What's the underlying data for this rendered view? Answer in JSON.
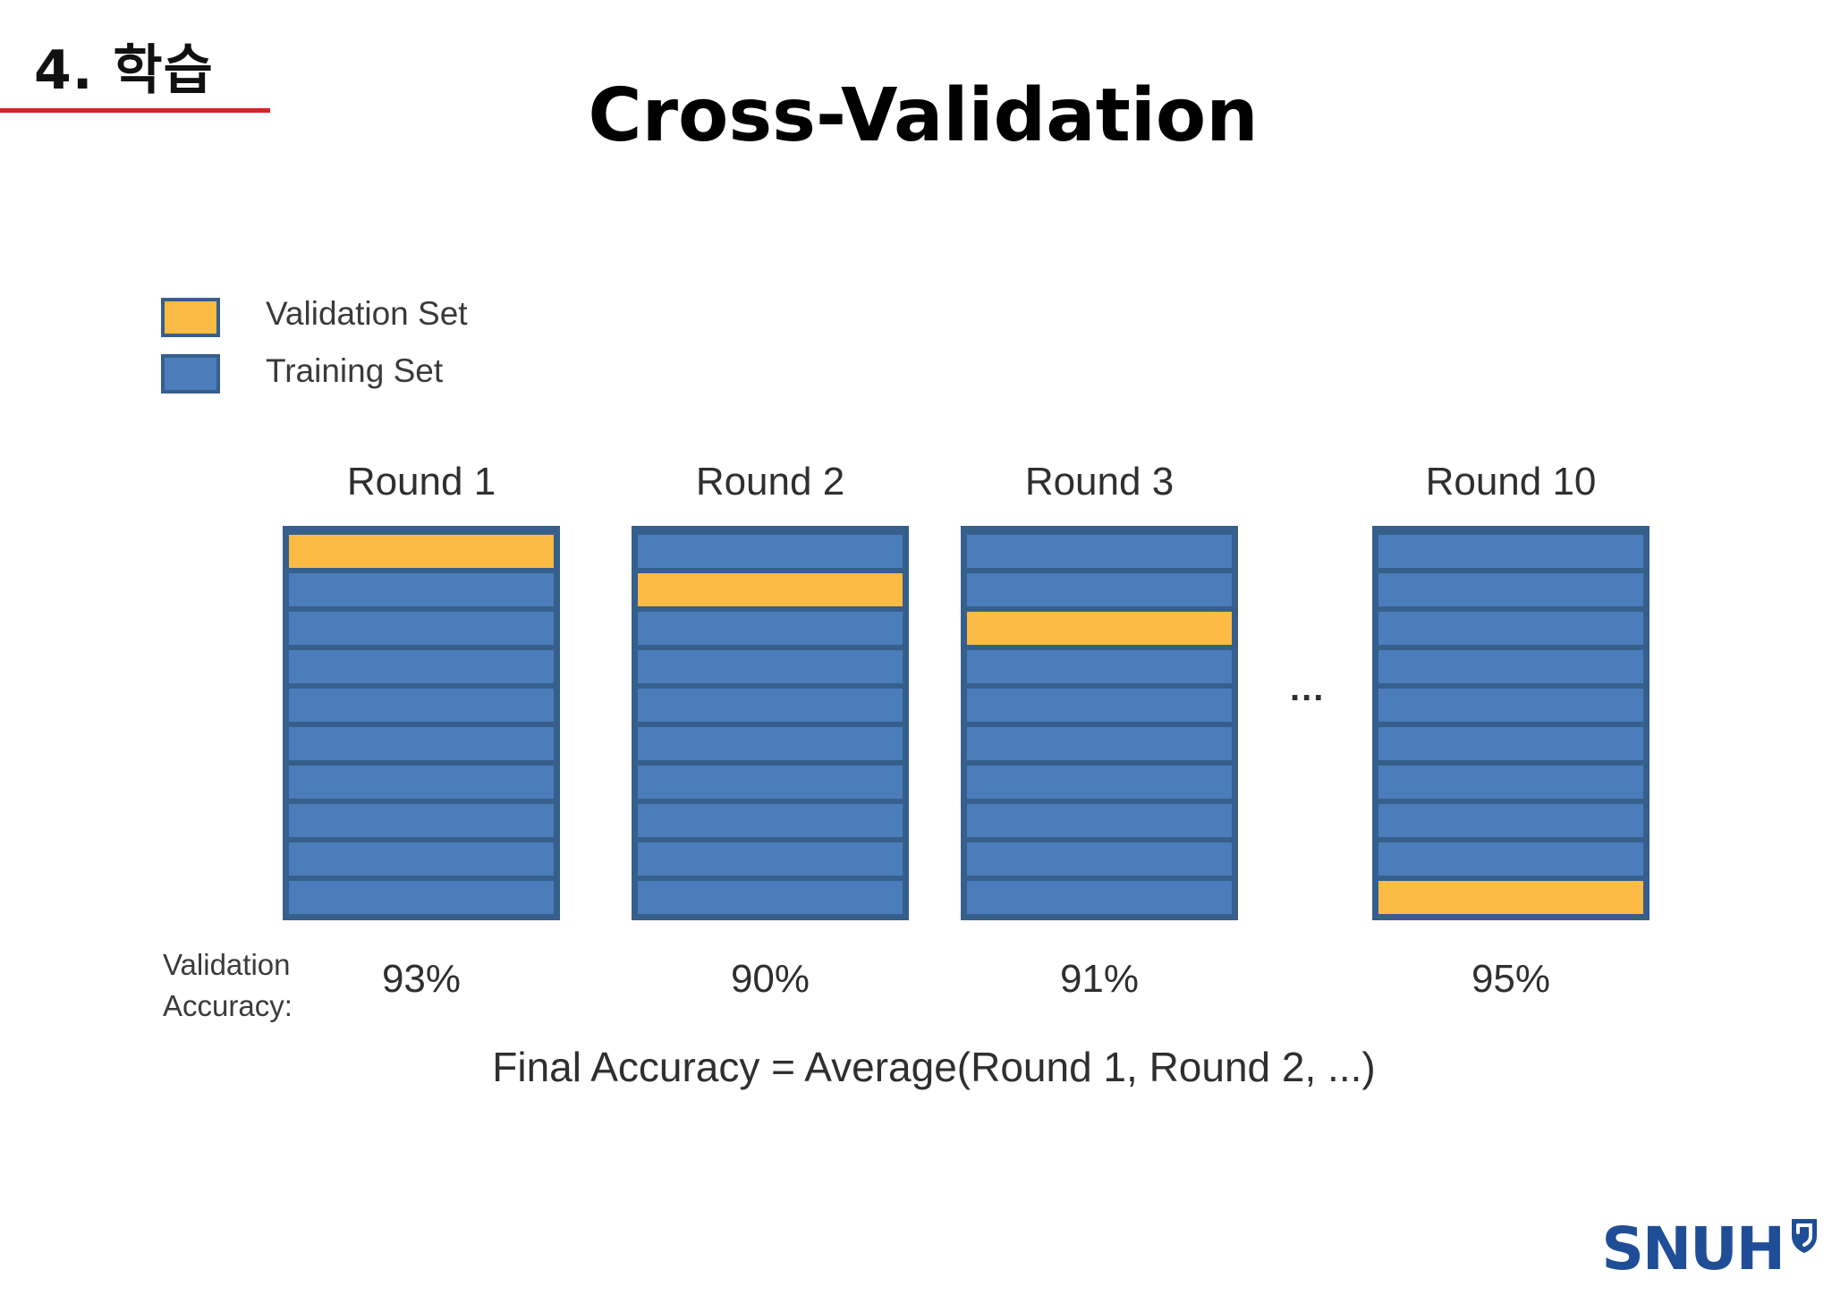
{
  "header": {
    "section": "4. 학습",
    "title": "Cross-Validation"
  },
  "legend": [
    {
      "label": "Validation Set",
      "color": "#fbbb44"
    },
    {
      "label": "Training Set",
      "color": "#4b7dbb"
    }
  ],
  "colors": {
    "validation": "#fbbb44",
    "training": "#4b7dbb",
    "border": "#365f8c",
    "accent_rule": "#d9202a",
    "logo": "#1f4e96"
  },
  "rounds": [
    {
      "label": "Round 1",
      "validation_fold": 1,
      "accuracy": "93%"
    },
    {
      "label": "Round 2",
      "validation_fold": 2,
      "accuracy": "90%"
    },
    {
      "label": "Round 3",
      "validation_fold": 3,
      "accuracy": "91%"
    },
    {
      "label": "Round 10",
      "validation_fold": 10,
      "accuracy": "95%"
    }
  ],
  "folds_per_round": 10,
  "ellipsis": "...",
  "accuracy_label": {
    "line1": "Validation",
    "line2": "Accuracy:"
  },
  "final_formula": "Final Accuracy  =  Average(Round 1, Round 2, ...)",
  "logo": {
    "text": "SNUH",
    "icon": "shield-icon"
  }
}
